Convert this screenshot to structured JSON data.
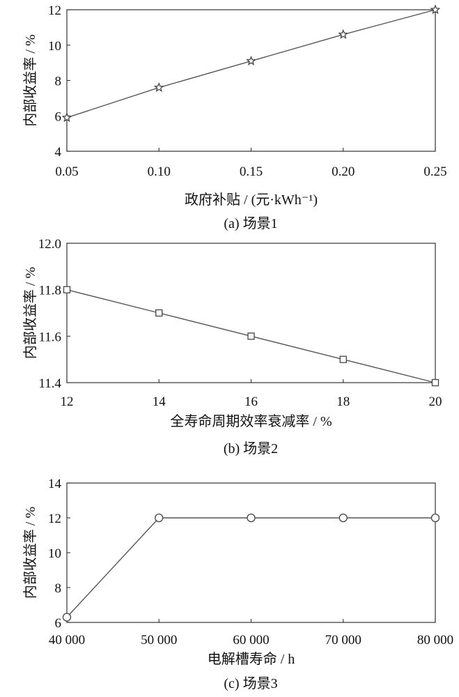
{
  "chart_data": [
    {
      "type": "line",
      "marker": "star",
      "x": [
        0.05,
        0.1,
        0.15,
        0.2,
        0.25
      ],
      "x_tick_labels": [
        "0.05",
        "0.10",
        "0.15",
        "0.20",
        "0.25"
      ],
      "series": [
        {
          "values": [
            5.9,
            7.6,
            9.1,
            10.6,
            12.0
          ]
        }
      ],
      "y_ticks": [
        4,
        6,
        8,
        10,
        12
      ],
      "y_tick_labels": [
        "4",
        "6",
        "8",
        "10",
        "12"
      ],
      "xlim": [
        0.05,
        0.25
      ],
      "ylim": [
        4,
        12
      ],
      "xlabel": "政府补贴 / (元·kWh⁻¹)",
      "ylabel": "内部收益率 / %",
      "caption": "(a)  场景1",
      "grid": false,
      "color": "#555555"
    },
    {
      "type": "line",
      "marker": "square",
      "x": [
        12,
        14,
        16,
        18,
        20
      ],
      "x_tick_labels": [
        "12",
        "14",
        "16",
        "18",
        "20"
      ],
      "series": [
        {
          "values": [
            11.8,
            11.7,
            11.6,
            11.5,
            11.4
          ]
        }
      ],
      "y_ticks": [
        11.4,
        11.6,
        11.8,
        12.0
      ],
      "y_tick_labels": [
        "11.4",
        "11.6",
        "11.8",
        "12.0"
      ],
      "xlim": [
        12,
        20
      ],
      "ylim": [
        11.4,
        12.0
      ],
      "xlabel": "全寿命周期效率衰减率 / %",
      "ylabel": "内部收益率 / %",
      "caption": "(b)  场景2",
      "grid": false,
      "color": "#555555"
    },
    {
      "type": "line",
      "marker": "circle",
      "x": [
        40000,
        50000,
        60000,
        70000,
        80000
      ],
      "x_tick_labels": [
        "40 000",
        "50 000",
        "60 000",
        "70 000",
        "80 000"
      ],
      "series": [
        {
          "values": [
            6.3,
            12.0,
            12.0,
            12.0,
            12.0
          ]
        }
      ],
      "y_ticks": [
        6,
        8,
        10,
        12,
        14
      ],
      "y_tick_labels": [
        "6",
        "8",
        "10",
        "12",
        "14"
      ],
      "xlim": [
        40000,
        80000
      ],
      "ylim": [
        6,
        14
      ],
      "xlabel": "电解槽寿命 / h",
      "ylabel": "内部收益率 / %",
      "caption": "(c)  场景3",
      "grid": false,
      "color": "#555555"
    }
  ]
}
